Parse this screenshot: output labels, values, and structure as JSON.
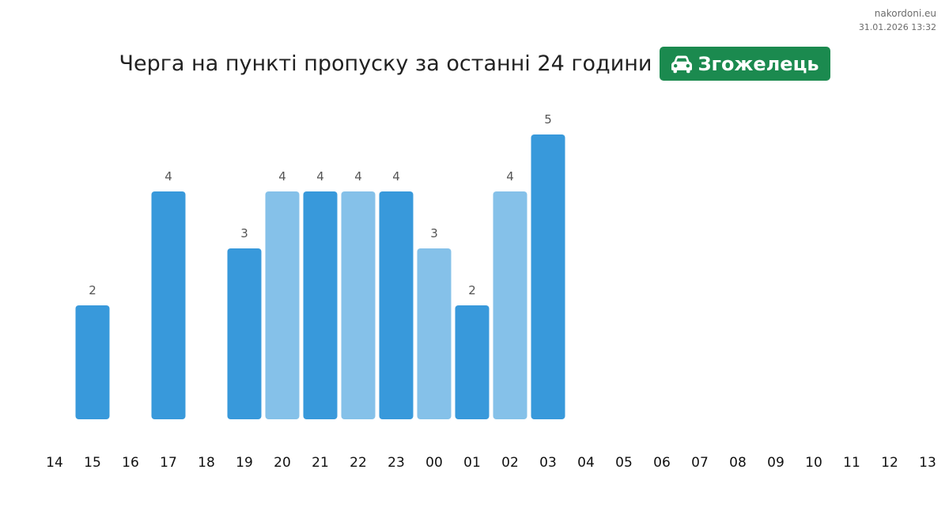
{
  "source": {
    "site": "nakordoni.eu",
    "timestamp": "31.01.2026 13:32"
  },
  "header": {
    "title": "Черга на пункті пропуску за останні 24 години",
    "badge_label": "Згожелець",
    "badge_icon": "car-icon",
    "badge_color": "#1b8a4f"
  },
  "chart_data": {
    "type": "bar",
    "title": "",
    "xlabel": "",
    "ylabel": "",
    "ylim": [
      0,
      5
    ],
    "grid": false,
    "categories": [
      "14",
      "15",
      "16",
      "17",
      "18",
      "19",
      "20",
      "21",
      "22",
      "23",
      "00",
      "01",
      "02",
      "03",
      "04",
      "05",
      "06",
      "07",
      "08",
      "09",
      "10",
      "11",
      "12",
      "13"
    ],
    "values": [
      null,
      2,
      null,
      4,
      null,
      3,
      4,
      4,
      4,
      4,
      3,
      2,
      4,
      5,
      null,
      null,
      null,
      null,
      null,
      null,
      null,
      null,
      null,
      null
    ],
    "bar_colors": [
      null,
      "#3899db",
      null,
      "#3899db",
      null,
      "#3899db",
      "#85c1e9",
      "#3899db",
      "#85c1e9",
      "#3899db",
      "#85c1e9",
      "#3899db",
      "#85c1e9",
      "#3899db",
      null,
      null,
      null,
      null,
      null,
      null,
      null,
      null,
      null,
      null
    ],
    "colors": {
      "primary": "#3899db",
      "light": "#85c1e9"
    }
  }
}
